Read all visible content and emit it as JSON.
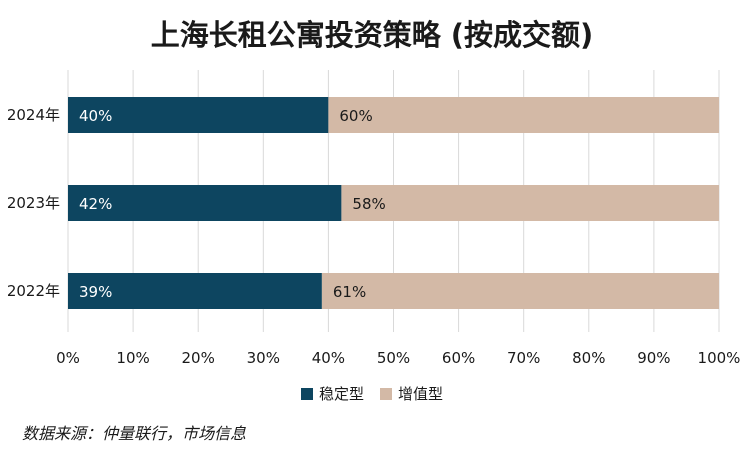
{
  "chart_data": {
    "type": "bar",
    "orientation": "horizontal",
    "stacked": true,
    "title": "上海长租公寓投资策略 (按成交额)",
    "source": "数据来源：仲量联行，市场信息",
    "categories": [
      "2024年",
      "2023年",
      "2022年"
    ],
    "series": [
      {
        "name": "稳定型",
        "color": "#0d4560",
        "label_color": "#ffffff",
        "values": [
          40,
          42,
          39
        ],
        "labels": [
          "40%",
          "42%",
          "39%"
        ]
      },
      {
        "name": "增值型",
        "color": "#d3b9a6",
        "label_color": "#1a1a1a",
        "values": [
          60,
          58,
          61
        ],
        "labels": [
          "60%",
          "58%",
          "61%"
        ]
      }
    ],
    "xlim": [
      0,
      100
    ],
    "x_ticks": [
      0,
      10,
      20,
      30,
      40,
      50,
      60,
      70,
      80,
      90,
      100
    ],
    "x_tick_labels": [
      "0%",
      "10%",
      "20%",
      "30%",
      "40%",
      "50%",
      "60%",
      "70%",
      "80%",
      "90%",
      "100%"
    ],
    "grid": true,
    "legend_position": "bottom-center"
  }
}
